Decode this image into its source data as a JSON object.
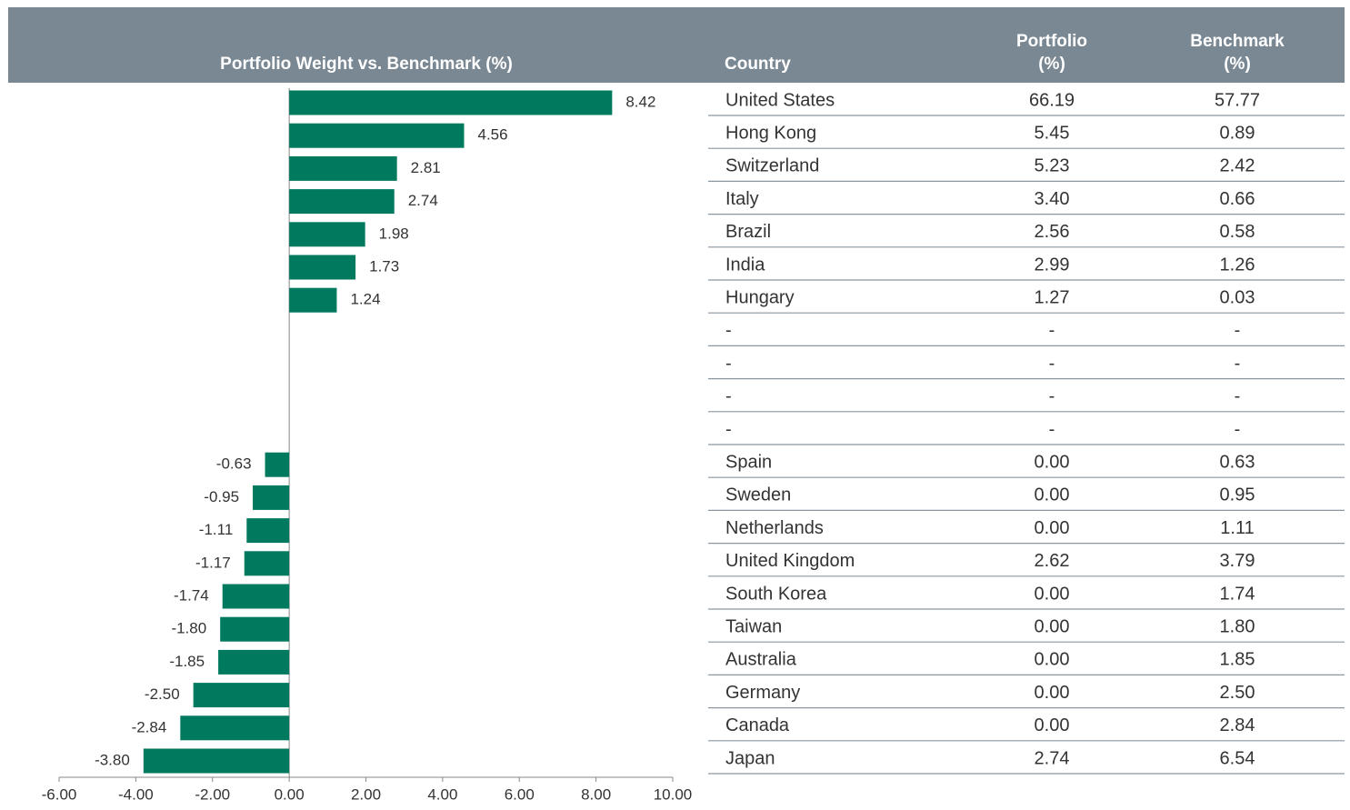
{
  "chart_data": {
    "type": "bar",
    "orientation": "horizontal",
    "title": "Portfolio Weight vs. Benchmark (%)",
    "color": "#007a5e",
    "values": [
      8.42,
      4.56,
      2.81,
      2.74,
      1.98,
      1.73,
      1.24,
      null,
      null,
      null,
      null,
      -0.63,
      -0.95,
      -1.11,
      -1.17,
      -1.74,
      -1.8,
      -1.85,
      -2.5,
      -2.84,
      -3.8
    ],
    "value_labels": [
      "8.42",
      "4.56",
      "2.81",
      "2.74",
      "1.98",
      "1.73",
      "1.24",
      null,
      null,
      null,
      null,
      "-0.63",
      "-0.95",
      "-1.11",
      "-1.17",
      "-1.74",
      "-1.80",
      "-1.85",
      "-2.50",
      "-2.84",
      "-3.80"
    ],
    "xlim": [
      -6,
      10
    ],
    "xticks": [
      {
        "value": -6,
        "label": "-6.00"
      },
      {
        "value": -4,
        "label": "-4.00"
      },
      {
        "value": -2,
        "label": "-2.00"
      },
      {
        "value": 0,
        "label": "0.00"
      },
      {
        "value": 2,
        "label": "2.00"
      },
      {
        "value": 4,
        "label": "4.00"
      },
      {
        "value": 6,
        "label": "6.00"
      },
      {
        "value": 8,
        "label": "8.00"
      },
      {
        "value": 10,
        "label": "10.00"
      }
    ]
  },
  "table": {
    "columns": [
      [
        "Country"
      ],
      [
        "Portfolio",
        "(%)"
      ],
      [
        "Benchmark",
        "(%)"
      ]
    ],
    "rows": [
      [
        "United States",
        "66.19",
        "57.77"
      ],
      [
        "Hong Kong",
        "5.45",
        "0.89"
      ],
      [
        "Switzerland",
        "5.23",
        "2.42"
      ],
      [
        "Italy",
        "3.40",
        "0.66"
      ],
      [
        "Brazil",
        "2.56",
        "0.58"
      ],
      [
        "India",
        "2.99",
        "1.26"
      ],
      [
        "Hungary",
        "1.27",
        "0.03"
      ],
      [
        "-",
        "-",
        "-"
      ],
      [
        "-",
        "-",
        "-"
      ],
      [
        "-",
        "-",
        "-"
      ],
      [
        "-",
        "-",
        "-"
      ],
      [
        "Spain",
        "0.00",
        "0.63"
      ],
      [
        "Sweden",
        "0.00",
        "0.95"
      ],
      [
        "Netherlands",
        "0.00",
        "1.11"
      ],
      [
        "United Kingdom",
        "2.62",
        "3.79"
      ],
      [
        "South Korea",
        "0.00",
        "1.74"
      ],
      [
        "Taiwan",
        "0.00",
        "1.80"
      ],
      [
        "Australia",
        "0.00",
        "1.85"
      ],
      [
        "Germany",
        "0.00",
        "2.50"
      ],
      [
        "Canada",
        "0.00",
        "2.84"
      ],
      [
        "Japan",
        "2.74",
        "6.54"
      ]
    ]
  }
}
